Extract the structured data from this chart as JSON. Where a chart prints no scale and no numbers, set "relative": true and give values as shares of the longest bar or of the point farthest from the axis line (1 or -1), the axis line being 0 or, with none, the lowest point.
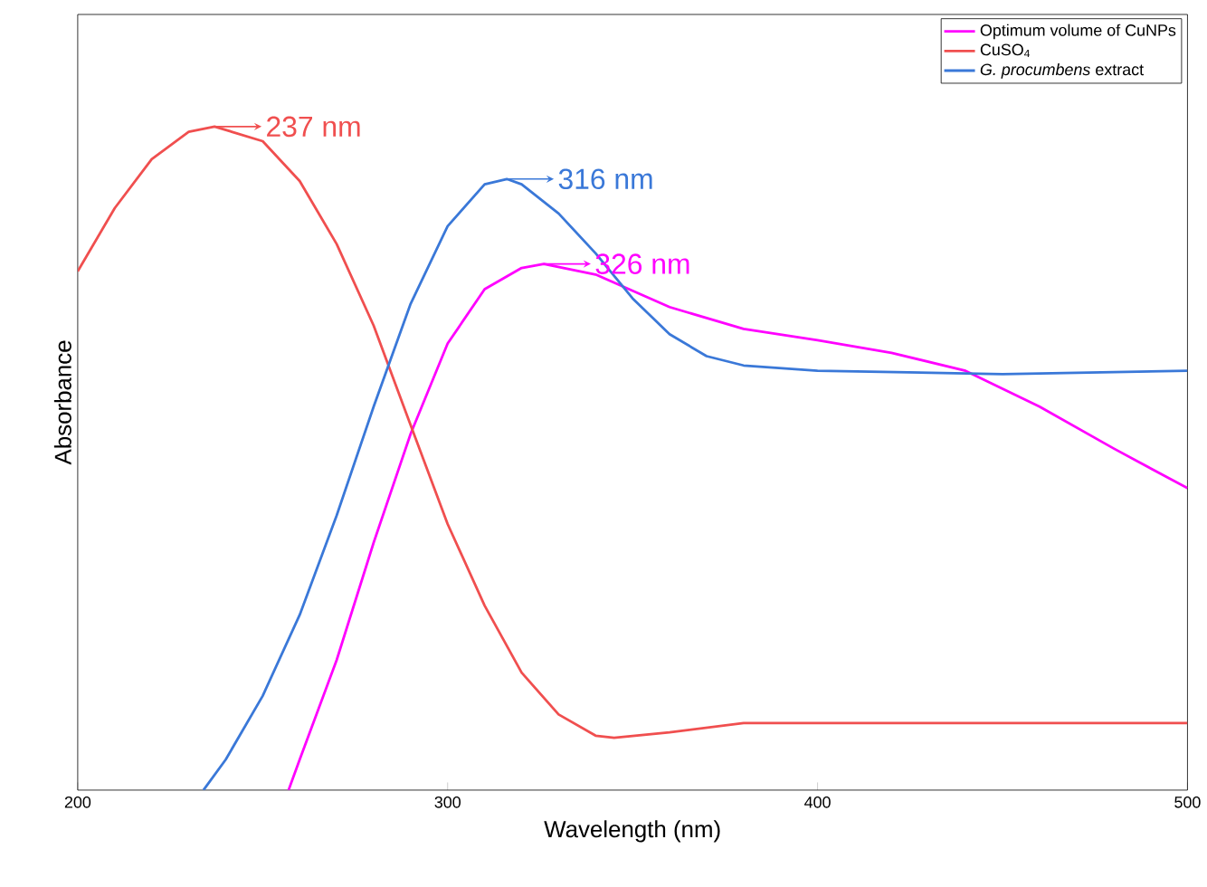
{
  "chart_data": {
    "type": "line",
    "relative": true,
    "xlabel": "Wavelength (nm)",
    "ylabel": "Absorbance",
    "xlim": [
      200,
      500
    ],
    "xticks": [
      200,
      300,
      400,
      500
    ],
    "grid": false,
    "legend": "top right",
    "marker": "none",
    "line_style": "solid",
    "series": [
      {
        "name": "Optimum volume of CuNPs",
        "color": "#ff00ff",
        "x": [
          257,
          260,
          270,
          280,
          290,
          300,
          310,
          320,
          326,
          340,
          360,
          380,
          400,
          420,
          440,
          460,
          480,
          500
        ],
        "values": [
          0,
          0.046,
          0.196,
          0.373,
          0.537,
          0.673,
          0.755,
          0.787,
          0.793,
          0.777,
          0.728,
          0.695,
          0.678,
          0.659,
          0.632,
          0.578,
          0.515,
          0.455
        ]
      },
      {
        "name": "CuSO$_{4}$",
        "color": "#f04f4f",
        "x": [
          200,
          210,
          220,
          230,
          237,
          250,
          260,
          270,
          280,
          290,
          300,
          310,
          320,
          330,
          340,
          345,
          360,
          380,
          400,
          450,
          500
        ],
        "values": [
          0.782,
          0.877,
          0.951,
          0.992,
          1.0,
          0.978,
          0.918,
          0.823,
          0.7,
          0.55,
          0.401,
          0.278,
          0.177,
          0.114,
          0.082,
          0.079,
          0.087,
          0.101,
          0.101,
          0.101,
          0.101
        ]
      },
      {
        "name": "*G. procumbens* extract",
        "color": "#3a78d8",
        "x": [
          234,
          240,
          250,
          260,
          270,
          280,
          290,
          300,
          310,
          316,
          320,
          330,
          340,
          350,
          360,
          370,
          380,
          400,
          450,
          500
        ],
        "values": [
          0,
          0.046,
          0.142,
          0.264,
          0.414,
          0.578,
          0.733,
          0.85,
          0.913,
          0.921,
          0.913,
          0.869,
          0.809,
          0.741,
          0.687,
          0.654,
          0.64,
          0.632,
          0.627,
          0.632
        ]
      }
    ],
    "annotations": [
      {
        "text": "237 nm",
        "x": 237,
        "y": 1.0
      },
      {
        "text": "316 nm",
        "x": 316,
        "y": 0.921
      },
      {
        "text": "326 nm",
        "x": 326,
        "y": 0.793
      }
    ]
  }
}
